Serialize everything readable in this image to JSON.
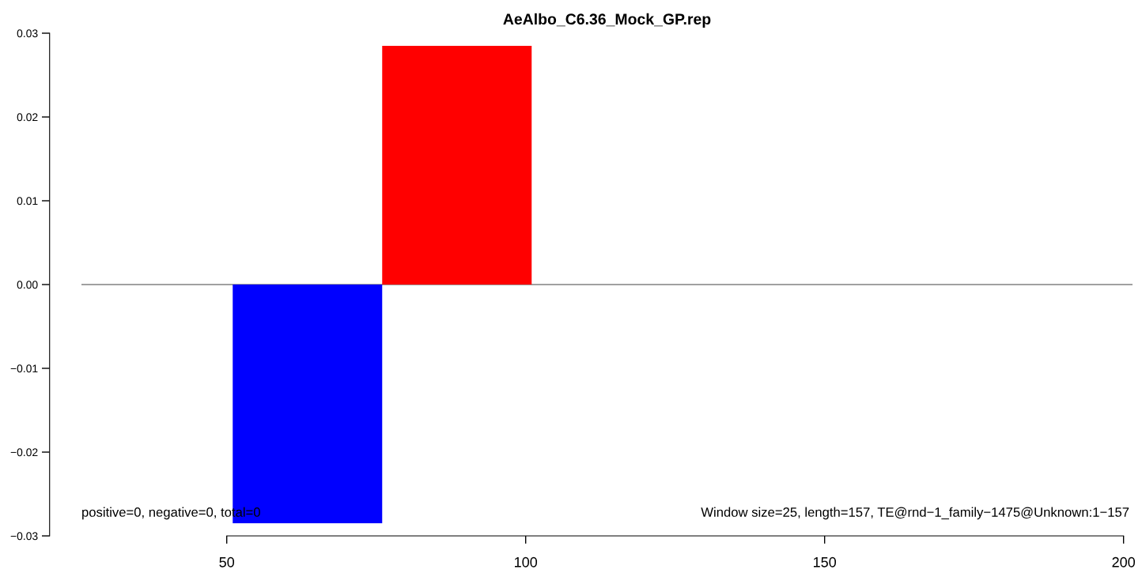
{
  "chart_data": {
    "type": "bar",
    "title": "AeAlbo_C6.36_Mock_GP.rep",
    "x": [
      63.5,
      88.5
    ],
    "values": [
      -0.0285,
      0.0285
    ],
    "colors": [
      "#0000ff",
      "#ff0000"
    ],
    "xlim": [
      25.7,
      201.5
    ],
    "xticks": [
      50,
      100,
      150,
      200
    ],
    "ylim": [
      -0.03,
      0.03
    ],
    "yticks": [
      {
        "value": -0.03,
        "label": "−0.03"
      },
      {
        "value": -0.02,
        "label": "−0.02"
      },
      {
        "value": -0.01,
        "label": "−0.01"
      },
      {
        "value": 0,
        "label": "0.00"
      },
      {
        "value": 0.01,
        "label": "0.01"
      },
      {
        "value": 0.02,
        "label": "0.02"
      },
      {
        "value": 0.03,
        "label": "0.03"
      }
    ],
    "ref_lines": [
      {
        "axis": "y",
        "value": 0,
        "color": "#808080"
      }
    ],
    "annotations": [
      "positive=0, negative=0, total=0",
      "Window size=25, length=157, TE@rnd−1_family−1475@Unknown:1−157"
    ],
    "grid": false,
    "legend": false
  }
}
